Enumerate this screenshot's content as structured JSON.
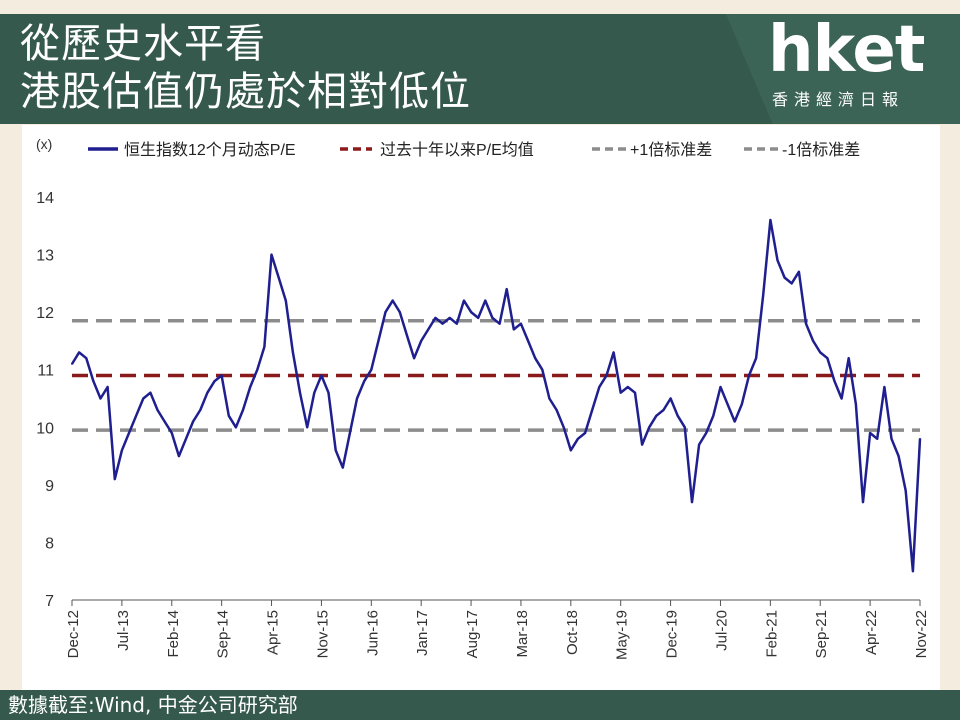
{
  "header": {
    "title_line1": "從歷史水平看",
    "title_line2": "港股估值仍處於相對低位",
    "logo": "hket",
    "logo_sub": "香港經濟日報"
  },
  "footer": {
    "source": "數據截至:Wind, 中金公司研究部"
  },
  "colors": {
    "band": "#36594d",
    "pe_line": "#1f1f8f",
    "mean_line": "#8b1a1a",
    "sd_line": "#8c8c8c"
  },
  "chart_data": {
    "type": "line",
    "unit_label": "(x)",
    "ylim": [
      7,
      14
    ],
    "yticks": [
      7,
      8,
      9,
      10,
      11,
      12,
      13,
      14
    ],
    "xlim": [
      "2012-12",
      "2022-11"
    ],
    "xtick_labels": [
      "Dec-12",
      "Jul-13",
      "Feb-14",
      "Sep-14",
      "Apr-15",
      "Nov-15",
      "Jun-16",
      "Jan-17",
      "Aug-17",
      "Mar-18",
      "Oct-18",
      "May-19",
      "Dec-19",
      "Jul-20",
      "Feb-21",
      "Sep-21",
      "Apr-22",
      "Nov-22"
    ],
    "legend": [
      {
        "label": "恒生指数12个月动态P/E",
        "style": "solid",
        "color": "#1f1f8f"
      },
      {
        "label": "过去十年以来P/E均值",
        "style": "dashed",
        "color": "#8b1a1a"
      },
      {
        "label": "+1倍标准差",
        "style": "dashed",
        "color": "#8c8c8c"
      },
      {
        "label": "-1倍标准差",
        "style": "dashed",
        "color": "#8c8c8c"
      }
    ],
    "reference_lines": {
      "mean": 10.9,
      "plus_1sd": 11.85,
      "minus_1sd": 9.95
    },
    "series": [
      {
        "name": "恒生指数12个月动态P/E",
        "points": [
          [
            "2012-12",
            11.1
          ],
          [
            "2013-01",
            11.3
          ],
          [
            "2013-02",
            11.2
          ],
          [
            "2013-03",
            10.8
          ],
          [
            "2013-04",
            10.5
          ],
          [
            "2013-05",
            10.7
          ],
          [
            "2013-06",
            9.1
          ],
          [
            "2013-07",
            9.6
          ],
          [
            "2013-08",
            9.9
          ],
          [
            "2013-09",
            10.2
          ],
          [
            "2013-10",
            10.5
          ],
          [
            "2013-11",
            10.6
          ],
          [
            "2013-12",
            10.3
          ],
          [
            "2014-01",
            10.1
          ],
          [
            "2014-02",
            9.9
          ],
          [
            "2014-03",
            9.5
          ],
          [
            "2014-04",
            9.8
          ],
          [
            "2014-05",
            10.1
          ],
          [
            "2014-06",
            10.3
          ],
          [
            "2014-07",
            10.6
          ],
          [
            "2014-08",
            10.8
          ],
          [
            "2014-09",
            10.9
          ],
          [
            "2014-10",
            10.2
          ],
          [
            "2014-11",
            10.0
          ],
          [
            "2014-12",
            10.3
          ],
          [
            "2015-01",
            10.7
          ],
          [
            "2015-02",
            11.0
          ],
          [
            "2015-03",
            11.4
          ],
          [
            "2015-04",
            13.0
          ],
          [
            "2015-05",
            12.6
          ],
          [
            "2015-06",
            12.2
          ],
          [
            "2015-07",
            11.3
          ],
          [
            "2015-08",
            10.6
          ],
          [
            "2015-09",
            10.0
          ],
          [
            "2015-10",
            10.6
          ],
          [
            "2015-11",
            10.9
          ],
          [
            "2015-12",
            10.6
          ],
          [
            "2016-01",
            9.6
          ],
          [
            "2016-02",
            9.3
          ],
          [
            "2016-03",
            9.9
          ],
          [
            "2016-04",
            10.5
          ],
          [
            "2016-05",
            10.8
          ],
          [
            "2016-06",
            11.0
          ],
          [
            "2016-07",
            11.5
          ],
          [
            "2016-08",
            12.0
          ],
          [
            "2016-09",
            12.2
          ],
          [
            "2016-10",
            12.0
          ],
          [
            "2016-11",
            11.6
          ],
          [
            "2016-12",
            11.2
          ],
          [
            "2017-01",
            11.5
          ],
          [
            "2017-02",
            11.7
          ],
          [
            "2017-03",
            11.9
          ],
          [
            "2017-04",
            11.8
          ],
          [
            "2017-05",
            11.9
          ],
          [
            "2017-06",
            11.8
          ],
          [
            "2017-07",
            12.2
          ],
          [
            "2017-08",
            12.0
          ],
          [
            "2017-09",
            11.9
          ],
          [
            "2017-10",
            12.2
          ],
          [
            "2017-11",
            11.9
          ],
          [
            "2017-12",
            11.8
          ],
          [
            "2018-01",
            12.4
          ],
          [
            "2018-02",
            11.7
          ],
          [
            "2018-03",
            11.8
          ],
          [
            "2018-04",
            11.5
          ],
          [
            "2018-05",
            11.2
          ],
          [
            "2018-06",
            11.0
          ],
          [
            "2018-07",
            10.5
          ],
          [
            "2018-08",
            10.3
          ],
          [
            "2018-09",
            10.0
          ],
          [
            "2018-10",
            9.6
          ],
          [
            "2018-11",
            9.8
          ],
          [
            "2018-12",
            9.9
          ],
          [
            "2019-01",
            10.3
          ],
          [
            "2019-02",
            10.7
          ],
          [
            "2019-03",
            10.9
          ],
          [
            "2019-04",
            11.3
          ],
          [
            "2019-05",
            10.6
          ],
          [
            "2019-06",
            10.7
          ],
          [
            "2019-07",
            10.6
          ],
          [
            "2019-08",
            9.7
          ],
          [
            "2019-09",
            10.0
          ],
          [
            "2019-10",
            10.2
          ],
          [
            "2019-11",
            10.3
          ],
          [
            "2019-12",
            10.5
          ],
          [
            "2020-01",
            10.2
          ],
          [
            "2020-02",
            10.0
          ],
          [
            "2020-03",
            8.7
          ],
          [
            "2020-04",
            9.7
          ],
          [
            "2020-05",
            9.9
          ],
          [
            "2020-06",
            10.2
          ],
          [
            "2020-07",
            10.7
          ],
          [
            "2020-08",
            10.4
          ],
          [
            "2020-09",
            10.1
          ],
          [
            "2020-10",
            10.4
          ],
          [
            "2020-11",
            10.9
          ],
          [
            "2020-12",
            11.2
          ],
          [
            "2021-01",
            12.3
          ],
          [
            "2021-02",
            13.6
          ],
          [
            "2021-03",
            12.9
          ],
          [
            "2021-04",
            12.6
          ],
          [
            "2021-05",
            12.5
          ],
          [
            "2021-06",
            12.7
          ],
          [
            "2021-07",
            11.8
          ],
          [
            "2021-08",
            11.5
          ],
          [
            "2021-09",
            11.3
          ],
          [
            "2021-10",
            11.2
          ],
          [
            "2021-11",
            10.8
          ],
          [
            "2021-12",
            10.5
          ],
          [
            "2022-01",
            11.2
          ],
          [
            "2022-02",
            10.4
          ],
          [
            "2022-03",
            8.7
          ],
          [
            "2022-04",
            9.9
          ],
          [
            "2022-05",
            9.8
          ],
          [
            "2022-06",
            10.7
          ],
          [
            "2022-07",
            9.8
          ],
          [
            "2022-08",
            9.5
          ],
          [
            "2022-09",
            8.9
          ],
          [
            "2022-10",
            7.5
          ],
          [
            "2022-11",
            9.8
          ]
        ]
      }
    ]
  }
}
